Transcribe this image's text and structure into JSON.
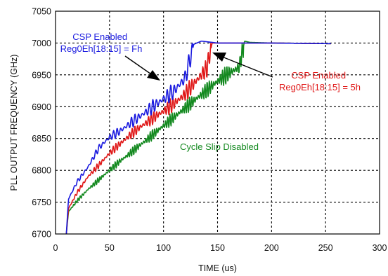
{
  "chart_data": {
    "type": "line",
    "title": "",
    "xlabel": "TIME (us)",
    "ylabel": "PLL OUTPUT FREQUENCY (GHz)",
    "xlim": [
      0,
      300
    ],
    "ylim": [
      6700,
      7050
    ],
    "x_ticks": [
      0,
      50,
      100,
      150,
      200,
      250,
      300
    ],
    "y_ticks": [
      6700,
      6750,
      6800,
      6850,
      6900,
      6950,
      7000,
      7050
    ],
    "grid": "dashed",
    "series": [
      {
        "color": "#1a1adf",
        "settle_x": 128,
        "points": [
          [
            10,
            6700
          ],
          [
            12,
            6755
          ],
          [
            20,
            6782
          ],
          [
            30,
            6805
          ],
          [
            40,
            6835
          ],
          [
            50,
            6852
          ],
          [
            60,
            6862
          ],
          [
            70,
            6875
          ],
          [
            80,
            6887
          ],
          [
            90,
            6900
          ],
          [
            100,
            6912
          ],
          [
            110,
            6925
          ],
          [
            120,
            6945
          ],
          [
            128,
            6998
          ],
          [
            135,
            7003
          ],
          [
            150,
            7000
          ],
          [
            200,
            7000
          ],
          [
            255,
            6999
          ]
        ]
      },
      {
        "color": "#e01818",
        "settle_x": 145,
        "points": [
          [
            10,
            6700
          ],
          [
            12,
            6740
          ],
          [
            20,
            6765
          ],
          [
            30,
            6790
          ],
          [
            40,
            6808
          ],
          [
            50,
            6827
          ],
          [
            60,
            6842
          ],
          [
            70,
            6857
          ],
          [
            80,
            6870
          ],
          [
            90,
            6882
          ],
          [
            100,
            6893
          ],
          [
            110,
            6905
          ],
          [
            120,
            6920
          ],
          [
            130,
            6940
          ],
          [
            140,
            6960
          ],
          [
            145,
            7000
          ],
          [
            150,
            7000
          ],
          [
            200,
            7000
          ],
          [
            255,
            6999
          ]
        ]
      },
      {
        "color": "#13891f",
        "settle_x": 175,
        "points": [
          [
            10,
            6700
          ],
          [
            12,
            6735
          ],
          [
            20,
            6752
          ],
          [
            30,
            6770
          ],
          [
            40,
            6785
          ],
          [
            50,
            6800
          ],
          [
            60,
            6815
          ],
          [
            70,
            6828
          ],
          [
            80,
            6842
          ],
          [
            90,
            6856
          ],
          [
            100,
            6870
          ],
          [
            110,
            6884
          ],
          [
            120,
            6898
          ],
          [
            130,
            6912
          ],
          [
            140,
            6926
          ],
          [
            150,
            6940
          ],
          [
            160,
            6952
          ],
          [
            170,
            6962
          ],
          [
            175,
            7003
          ],
          [
            180,
            7001
          ],
          [
            200,
            7000
          ],
          [
            255,
            6999
          ]
        ]
      }
    ],
    "annotations": [
      {
        "lines": [
          "CSP Enabled",
          "Reg0Eh[18:15] = Fh"
        ],
        "color": "#1a1adf"
      },
      {
        "lines": [
          "CSP Enabled",
          "Reg0Eh[18:15] = 5h"
        ],
        "color": "#e01818"
      },
      {
        "lines": [
          "Cycle Slip Disabled"
        ],
        "color": "#13891f"
      }
    ]
  }
}
